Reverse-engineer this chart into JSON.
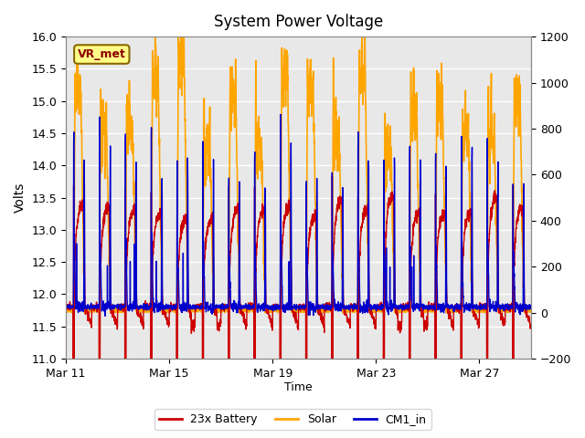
{
  "title": "System Power Voltage",
  "xlabel": "Time",
  "ylabel": "Volts",
  "ylim_left": [
    11.0,
    16.0
  ],
  "ylim_right": [
    -200,
    1200
  ],
  "yticks_left": [
    11.0,
    11.5,
    12.0,
    12.5,
    13.0,
    13.5,
    14.0,
    14.5,
    15.0,
    15.5,
    16.0
  ],
  "yticks_right": [
    -200,
    0,
    200,
    400,
    600,
    800,
    1000,
    1200
  ],
  "xtick_positions": [
    0,
    4,
    8,
    12,
    16
  ],
  "xtick_labels": [
    "Mar 11",
    "Mar 15",
    "Mar 19",
    "Mar 23",
    "Mar 27"
  ],
  "bg_color": "#e8e8e8",
  "fig_color": "#ffffff",
  "grid_color": "#ffffff",
  "line_colors": {
    "battery": "#cc0000",
    "solar": "#ffa500",
    "cm1": "#0000cc"
  },
  "line_widths": {
    "battery": 1.0,
    "solar": 1.2,
    "cm1": 1.0
  },
  "legend_labels": [
    "23x Battery",
    "Solar",
    "CM1_in"
  ],
  "vr_met_box_facecolor": "#ffff88",
  "vr_met_box_edgecolor": "#886600",
  "vr_met_text_color": "#8b0000",
  "annotation_label": "VR_met",
  "n_days": 18,
  "samples_per_day": 144
}
